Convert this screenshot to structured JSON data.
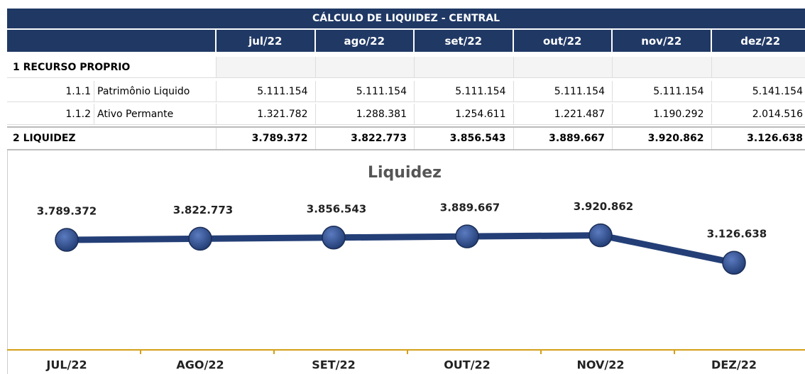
{
  "table": {
    "title": "CÁLCULO DE LIQUIDEZ - CENTRAL",
    "columns": [
      "jul/22",
      "ago/22",
      "set/22",
      "out/22",
      "nov/22",
      "dez/22"
    ],
    "rows": [
      {
        "label": "1 RECURSO PROPRIO"
      },
      {
        "code": "1.1.1",
        "label": "Patrimônio Liquido",
        "values": [
          "5.111.154",
          "5.111.154",
          "5.111.154",
          "5.111.154",
          "5.111.154",
          "5.141.154"
        ]
      },
      {
        "code": "1.1.2",
        "label": "Ativo Permante",
        "values": [
          "1.321.782",
          "1.288.381",
          "1.254.611",
          "1.221.487",
          "1.190.292",
          "2.014.516"
        ]
      },
      {
        "label": "2 LIQUIDEZ",
        "values": [
          "3.789.372",
          "3.822.773",
          "3.856.543",
          "3.889.667",
          "3.920.862",
          "3.126.638"
        ]
      }
    ]
  },
  "chart_data": {
    "type": "line",
    "title": "Liquidez",
    "categories": [
      "JUL/22",
      "AGO/22",
      "SET/22",
      "OUT/22",
      "NOV/22",
      "DEZ/22"
    ],
    "values": [
      3789372,
      3822773,
      3856543,
      3889667,
      3920862,
      3126638
    ],
    "value_labels": [
      "3.789.372",
      "3.822.773",
      "3.856.543",
      "3.889.667",
      "3.920.862",
      "3.126.638"
    ],
    "color": "#243f77",
    "axis_color": "#d4a017",
    "ylim": [
      600000,
      4500000
    ]
  }
}
